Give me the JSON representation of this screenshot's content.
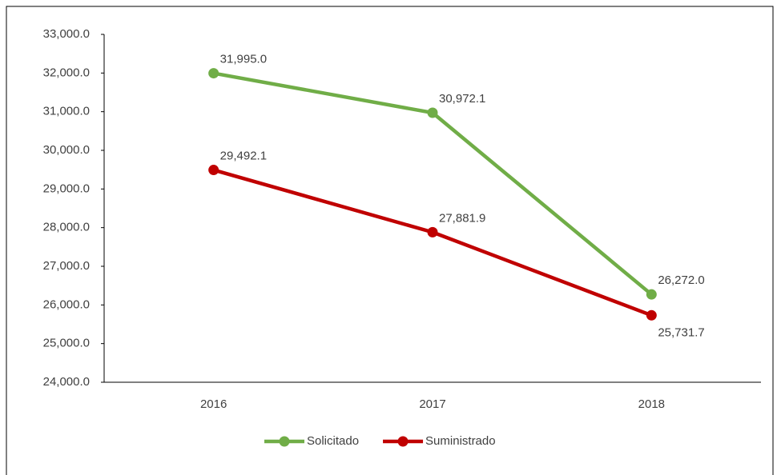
{
  "chart_data": {
    "type": "line",
    "categories": [
      "2016",
      "2017",
      "2018"
    ],
    "series": [
      {
        "name": "Solicitado",
        "color": "#70ad47",
        "values": [
          31995.0,
          30972.1,
          26272.0
        ],
        "value_labels": [
          "31,995.0",
          "30,972.1",
          "26,272.0"
        ]
      },
      {
        "name": "Suministrado",
        "color": "#c00000",
        "values": [
          29492.1,
          27881.9,
          25731.7
        ],
        "value_labels": [
          "29,492.1",
          "27,881.9",
          "25,731.7"
        ]
      }
    ],
    "ylim": [
      24000,
      33000
    ],
    "yticks": [
      {
        "value": 24000,
        "label": "24,000.0"
      },
      {
        "value": 25000,
        "label": "25,000.0"
      },
      {
        "value": 26000,
        "label": "26,000.0"
      },
      {
        "value": 27000,
        "label": "27,000.0"
      },
      {
        "value": 28000,
        "label": "28,000.0"
      },
      {
        "value": 29000,
        "label": "29,000.0"
      },
      {
        "value": 30000,
        "label": "30,000.0"
      },
      {
        "value": 31000,
        "label": "31,000.0"
      },
      {
        "value": 32000,
        "label": "32,000.0"
      },
      {
        "value": 33000,
        "label": "33,000.0"
      }
    ],
    "grid": false,
    "legend": "bottom"
  }
}
